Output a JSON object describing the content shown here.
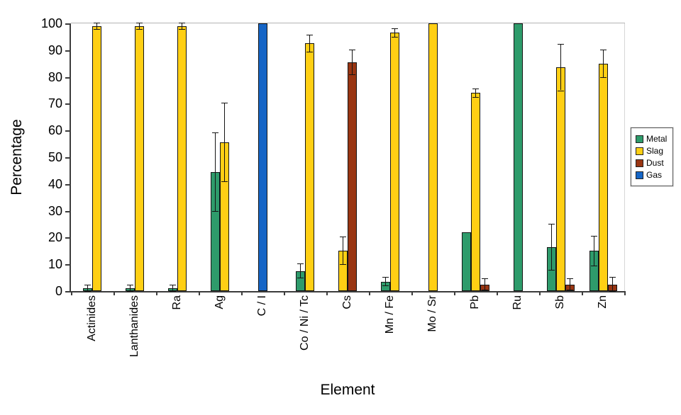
{
  "figure": {
    "background": "#FFFFFF",
    "axis_color": "#3C3C3C"
  },
  "chart_data": {
    "type": "bar",
    "title": "",
    "xlabel": "Element",
    "ylabel": "Percentage",
    "ylim": [
      0,
      100
    ],
    "yticks": [
      0,
      10,
      20,
      30,
      40,
      50,
      60,
      70,
      80,
      90,
      100
    ],
    "grid": false,
    "error_bars": true,
    "legend_position": "right",
    "categories": [
      "Actinides",
      "Lanthanides",
      "Ra",
      "Ag",
      "C / I",
      "Co / Ni / Tc",
      "Cs",
      "Mn / Fe",
      "Mo / Sr",
      "Pb",
      "Ru",
      "Sb",
      "Zn"
    ],
    "series": [
      {
        "name": "Metal",
        "color": "#2E9B6B",
        "values": [
          1,
          1,
          1,
          44.5,
          null,
          7.5,
          null,
          3.5,
          null,
          22,
          100,
          16.5,
          15
        ],
        "errors": [
          1,
          1,
          1,
          14.5,
          null,
          2.5,
          null,
          1.5,
          null,
          0,
          0,
          8.5,
          5.5
        ]
      },
      {
        "name": "Slag",
        "color": "#FFCF14",
        "values": [
          99,
          99,
          99,
          55.5,
          null,
          92.5,
          15,
          96.5,
          100,
          74,
          null,
          83.5,
          85
        ],
        "errors": [
          1,
          1,
          1,
          14.5,
          null,
          3,
          5,
          1.5,
          0,
          1.5,
          null,
          8.5,
          5
        ]
      },
      {
        "name": "Dust",
        "color": "#993512",
        "values": [
          null,
          null,
          null,
          null,
          null,
          null,
          85.5,
          null,
          null,
          2.5,
          null,
          2.5,
          2.5
        ],
        "errors": [
          null,
          null,
          null,
          null,
          null,
          null,
          4.5,
          null,
          null,
          2,
          null,
          2,
          2.5
        ]
      },
      {
        "name": "Gas",
        "color": "#1565C6",
        "values": [
          null,
          null,
          null,
          null,
          100,
          null,
          null,
          null,
          null,
          null,
          null,
          null,
          null
        ],
        "errors": [
          null,
          null,
          null,
          null,
          0,
          null,
          null,
          null,
          null,
          null,
          null,
          null,
          null
        ]
      }
    ]
  }
}
